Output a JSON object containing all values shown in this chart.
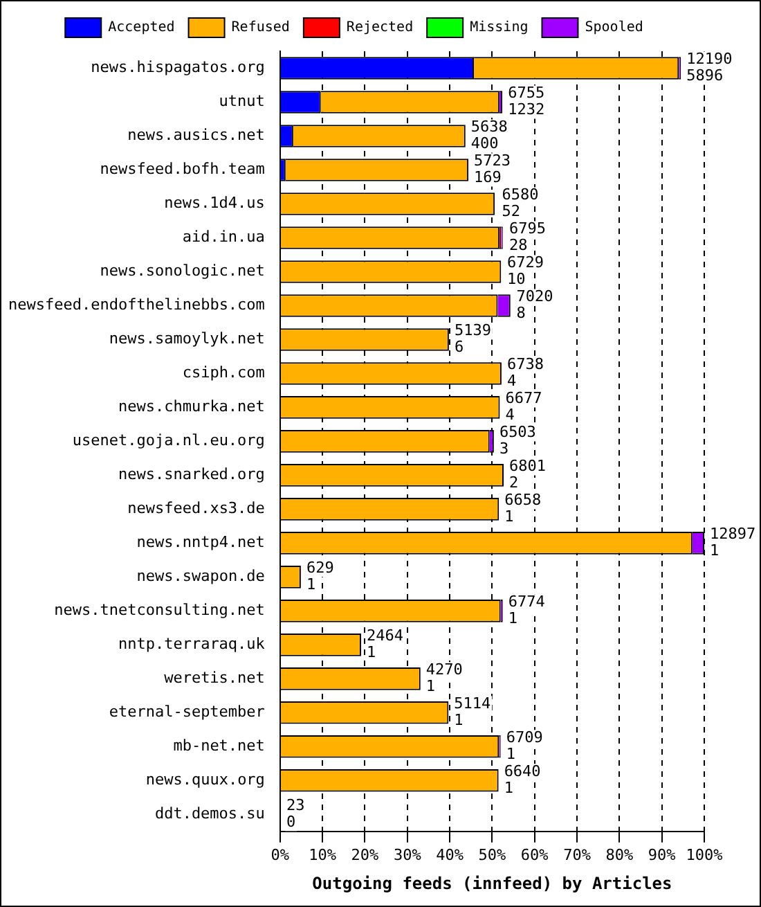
{
  "chart_data": {
    "type": "bar",
    "orientation": "horizontal",
    "stacked": true,
    "xlabel": "Outgoing feeds (innfeed) by Articles",
    "legend": "top",
    "grid": "x",
    "categories": [
      "news.hispagatos.org",
      "utnut",
      "news.ausics.net",
      "newsfeed.bofh.team",
      "news.1d4.us",
      "aid.in.ua",
      "news.sonologic.net",
      "newsfeed.endofthelinebbs.com",
      "news.samoylyk.net",
      "csiph.com",
      "news.chmurka.net",
      "usenet.goja.nl.eu.org",
      "news.snarked.org",
      "newsfeed.xs3.de",
      "news.nntp4.net",
      "news.swapon.de",
      "news.tnetconsulting.net",
      "nntp.terraraq.uk",
      "weretis.net",
      "eternal-september",
      "mb-net.net",
      "news.quux.org",
      "ddt.demos.su"
    ],
    "xlim": [
      0,
      100
    ],
    "xticks": [
      {
        "value": 0,
        "label": "0%"
      },
      {
        "value": 10,
        "label": "10%"
      },
      {
        "value": 20,
        "label": "20%"
      },
      {
        "value": 30,
        "label": "30%"
      },
      {
        "value": 40,
        "label": "40%"
      },
      {
        "value": 50,
        "label": "50%"
      },
      {
        "value": 60,
        "label": "60%"
      },
      {
        "value": 70,
        "label": "70%"
      },
      {
        "value": 80,
        "label": "80%"
      },
      {
        "value": 90,
        "label": "90%"
      },
      {
        "value": 100,
        "label": "100%"
      }
    ],
    "series": [
      {
        "name": "Accepted",
        "color": "#0000ff",
        "values": [
          45.7,
          9.6,
          3.1,
          1.3,
          null,
          null,
          null,
          null,
          0,
          0,
          0,
          0,
          0,
          0,
          0,
          0,
          0,
          0,
          0,
          0,
          0,
          0,
          0
        ]
      },
      {
        "name": "Refused",
        "color": "#ffb000",
        "values": [
          48.3,
          42.1,
          40.6,
          43.1,
          50.6,
          51.7,
          52.1,
          51.3,
          39.8,
          52.2,
          51.8,
          49.4,
          52.7,
          51.6,
          97.2,
          4.9,
          52.0,
          19.1,
          33.1,
          39.7,
          51.6,
          51.5,
          0.2
        ]
      },
      {
        "name": "Rejected",
        "color": "#ff0000",
        "values": [
          0,
          0,
          0,
          0,
          0,
          0.4,
          0,
          0,
          0,
          0,
          0,
          0,
          0,
          0,
          0,
          0,
          0,
          0,
          0,
          0,
          0,
          0,
          0
        ]
      },
      {
        "name": "Missing",
        "color": "#00ff00",
        "values": [
          0,
          0,
          0,
          0,
          0,
          0,
          0,
          0,
          0,
          0,
          0,
          0,
          0,
          0,
          0,
          0,
          0,
          0,
          0,
          0,
          0,
          0,
          0
        ]
      },
      {
        "name": "Spooled",
        "color": "#a000ff",
        "values": [
          0.5,
          0.7,
          0,
          0,
          0,
          0.4,
          0,
          3.0,
          0,
          0,
          0,
          1.0,
          0,
          0,
          2.8,
          0,
          0.5,
          0,
          0,
          0,
          0.4,
          0,
          0
        ]
      }
    ],
    "annotations": [
      {
        "text": "12190\n5896",
        "x": 94.5,
        "y": "news.hispagatos.org"
      },
      {
        "text": "6755\n1232",
        "x": 52.4,
        "y": "utnut"
      },
      {
        "text": "5638\n400",
        "x": 43.7,
        "y": "news.ausics.net"
      },
      {
        "text": "5723\n169",
        "x": 44.4,
        "y": "newsfeed.bofh.team"
      },
      {
        "text": "6580\n52",
        "x": 51.0,
        "y": "news.1d4.us"
      },
      {
        "text": "6795\n28",
        "x": 52.7,
        "y": "aid.in.ua"
      },
      {
        "text": "6729\n10",
        "x": 52.2,
        "y": "news.sonologic.net"
      },
      {
        "text": "7020\n8",
        "x": 54.4,
        "y": "newsfeed.endofthelinebbs.com"
      },
      {
        "text": "5139\n6",
        "x": 39.8,
        "y": "news.samoylyk.net"
      },
      {
        "text": "6738\n4",
        "x": 52.2,
        "y": "csiph.com"
      },
      {
        "text": "6677\n4",
        "x": 51.8,
        "y": "news.chmurka.net"
      },
      {
        "text": "6503\n3",
        "x": 50.4,
        "y": "usenet.goja.nl.eu.org"
      },
      {
        "text": "6801\n2",
        "x": 52.7,
        "y": "news.snarked.org"
      },
      {
        "text": "6658\n1",
        "x": 51.6,
        "y": "newsfeed.xs3.de"
      },
      {
        "text": "12897\n1",
        "x": 100,
        "y": "news.nntp4.net"
      },
      {
        "text": "629\n1",
        "x": 4.9,
        "y": "news.swapon.de"
      },
      {
        "text": "6774\n1",
        "x": 52.5,
        "y": "news.tnetconsulting.net"
      },
      {
        "text": "2464\n1",
        "x": 19.1,
        "y": "nntp.terraraq.uk"
      },
      {
        "text": "4270\n1",
        "x": 33.1,
        "y": "weretis.net"
      },
      {
        "text": "5114\n1",
        "x": 39.7,
        "y": "eternal-september"
      },
      {
        "text": "6709\n1",
        "x": 52.0,
        "y": "mb-net.net"
      },
      {
        "text": "6640\n1",
        "x": 51.5,
        "y": "news.quux.org"
      },
      {
        "text": "23\n0",
        "x": 0.2,
        "y": "ddt.demos.su"
      }
    ]
  }
}
